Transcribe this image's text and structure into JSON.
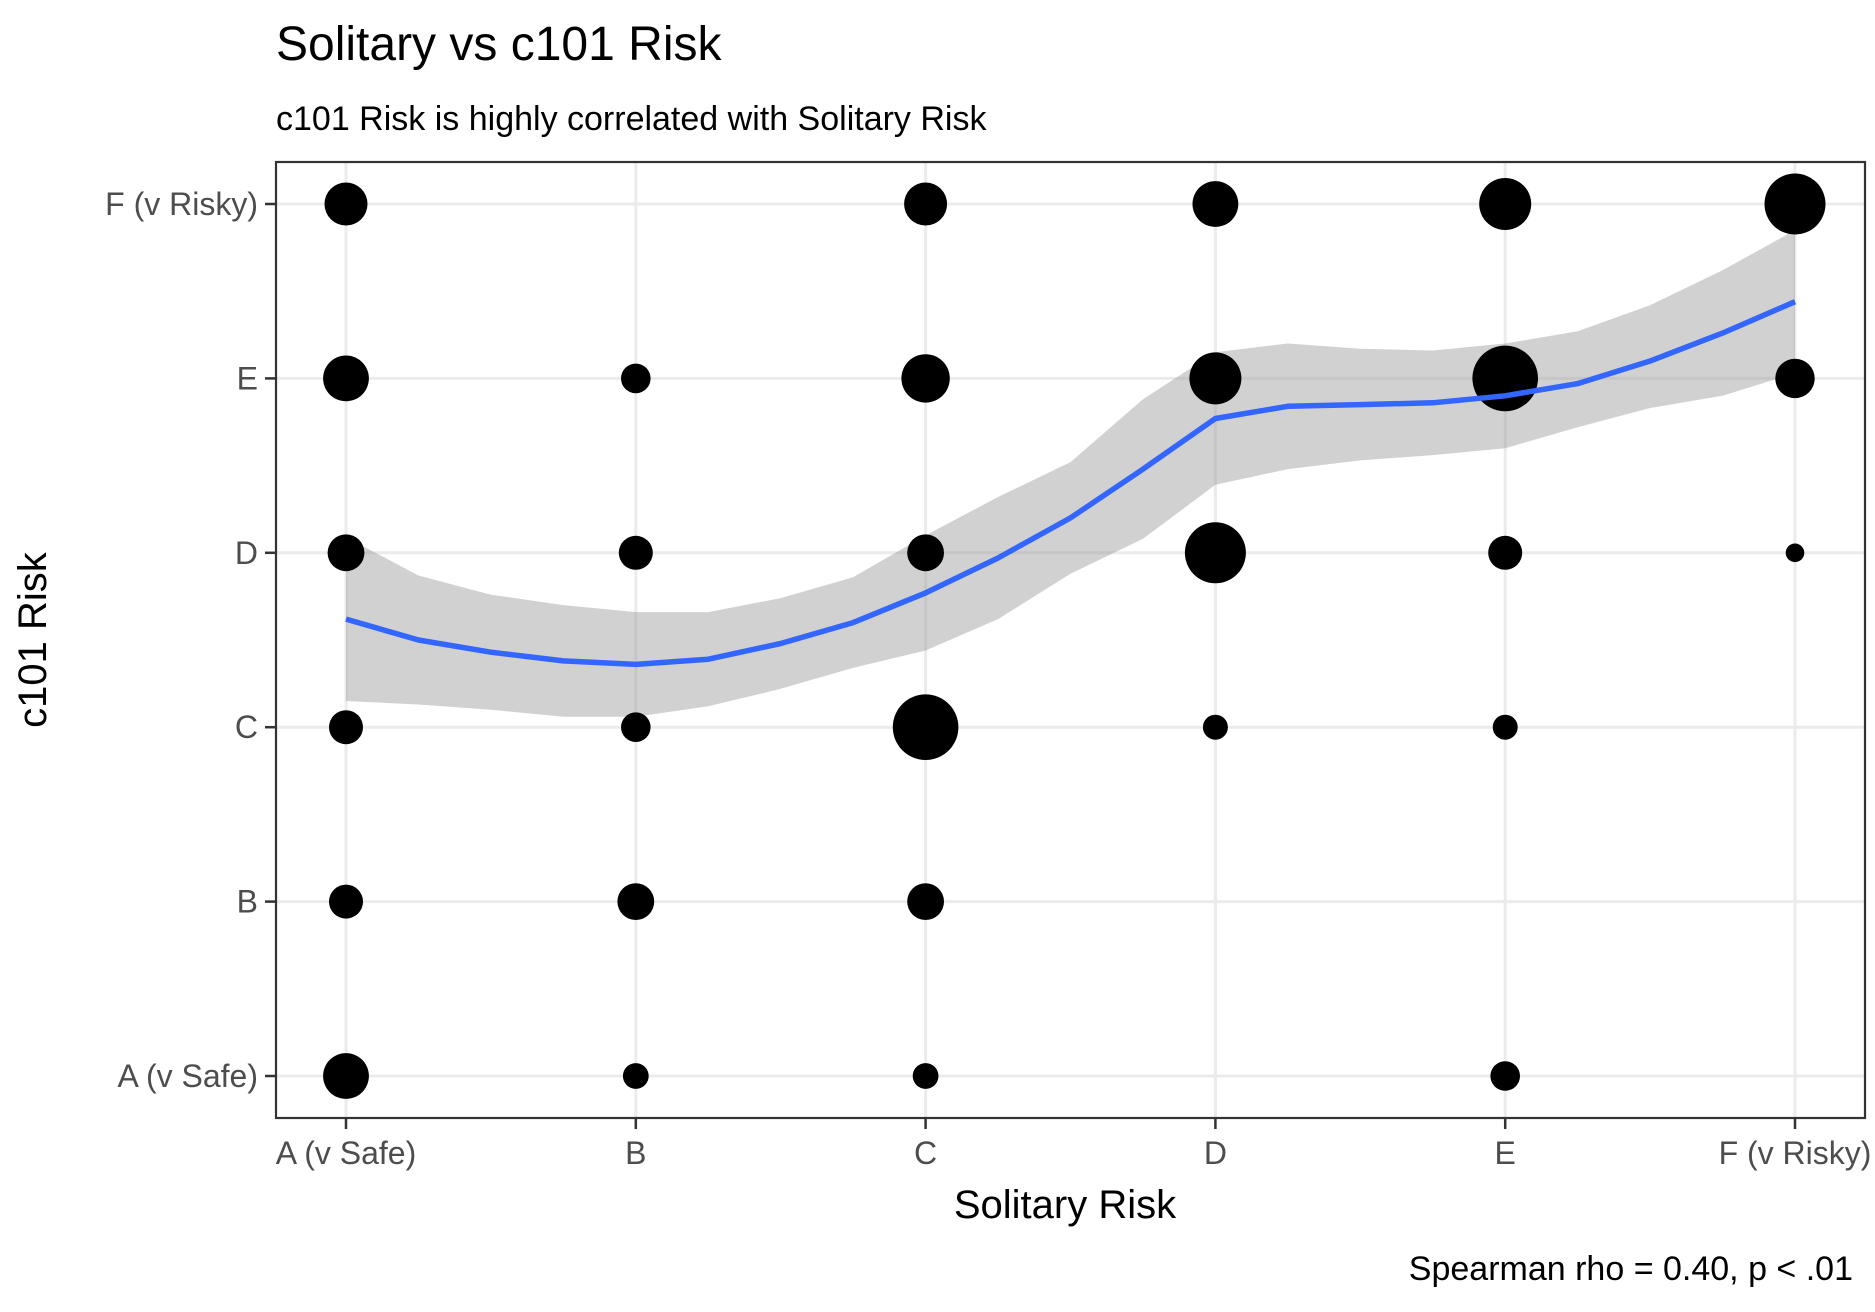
{
  "chart_data": {
    "type": "scatter",
    "title": "Solitary vs c101 Risk",
    "subtitle": "c101 Risk is highly correlated with Solitary Risk",
    "xlabel": "Solitary Risk",
    "ylabel": "c101 Risk",
    "caption": "Spearman rho = 0.40, p < .01",
    "x_categories": [
      "A (v Safe)",
      "B",
      "C",
      "D",
      "E",
      "F (v Risky)"
    ],
    "y_categories": [
      "A (v Safe)",
      "B",
      "C",
      "D",
      "E",
      "F (v Risky)"
    ],
    "grid": true,
    "points": [
      {
        "x": "A (v Safe)",
        "y": "F (v Risky)",
        "size": 3
      },
      {
        "x": "C",
        "y": "F (v Risky)",
        "size": 3
      },
      {
        "x": "D",
        "y": "F (v Risky)",
        "size": 3.3
      },
      {
        "x": "E",
        "y": "F (v Risky)",
        "size": 4
      },
      {
        "x": "F (v Risky)",
        "y": "F (v Risky)",
        "size": 5
      },
      {
        "x": "A (v Safe)",
        "y": "E",
        "size": 3.3
      },
      {
        "x": "B",
        "y": "E",
        "size": 1.5
      },
      {
        "x": "C",
        "y": "E",
        "size": 3.6
      },
      {
        "x": "D",
        "y": "E",
        "size": 4
      },
      {
        "x": "E",
        "y": "E",
        "size": 5.5
      },
      {
        "x": "F (v Risky)",
        "y": "E",
        "size": 2.6
      },
      {
        "x": "A (v Safe)",
        "y": "D",
        "size": 2.3
      },
      {
        "x": "B",
        "y": "D",
        "size": 2
      },
      {
        "x": "C",
        "y": "D",
        "size": 2.3
      },
      {
        "x": "D",
        "y": "D",
        "size": 5
      },
      {
        "x": "E",
        "y": "D",
        "size": 2
      },
      {
        "x": "F (v Risky)",
        "y": "D",
        "size": 0.3
      },
      {
        "x": "A (v Safe)",
        "y": "C",
        "size": 2
      },
      {
        "x": "B",
        "y": "C",
        "size": 1.5
      },
      {
        "x": "C",
        "y": "C",
        "size": 5.5
      },
      {
        "x": "D",
        "y": "C",
        "size": 1
      },
      {
        "x": "E",
        "y": "C",
        "size": 1
      },
      {
        "x": "A (v Safe)",
        "y": "B",
        "size": 2
      },
      {
        "x": "B",
        "y": "B",
        "size": 2.3
      },
      {
        "x": "C",
        "y": "B",
        "size": 2.3
      },
      {
        "x": "A (v Safe)",
        "y": "A (v Safe)",
        "size": 3.3
      },
      {
        "x": "B",
        "y": "A (v Safe)",
        "size": 1.1
      },
      {
        "x": "C",
        "y": "A (v Safe)",
        "size": 1.1
      },
      {
        "x": "E",
        "y": "A (v Safe)",
        "size": 1.5
      }
    ],
    "smooth": {
      "method": "loess",
      "color": "#3366FF",
      "band_color": "#999999",
      "x": [
        1,
        1.25,
        1.5,
        1.75,
        2,
        2.25,
        2.5,
        2.75,
        3,
        3.25,
        3.5,
        3.75,
        4,
        4.25,
        4.5,
        4.75,
        5,
        5.25,
        5.5,
        5.75,
        6
      ],
      "y": [
        3.62,
        3.5,
        3.43,
        3.38,
        3.36,
        3.39,
        3.48,
        3.6,
        3.77,
        3.97,
        4.2,
        4.48,
        4.77,
        4.84,
        4.85,
        4.86,
        4.9,
        4.97,
        5.1,
        5.26,
        5.44
      ],
      "ymin": [
        3.15,
        3.13,
        3.1,
        3.06,
        3.06,
        3.12,
        3.22,
        3.34,
        3.44,
        3.62,
        3.88,
        4.08,
        4.39,
        4.48,
        4.53,
        4.56,
        4.6,
        4.72,
        4.83,
        4.9,
        5.03
      ],
      "ymax": [
        4.09,
        3.87,
        3.76,
        3.7,
        3.66,
        3.66,
        3.74,
        3.86,
        4.1,
        4.32,
        4.52,
        4.88,
        5.15,
        5.2,
        5.17,
        5.16,
        5.2,
        5.27,
        5.42,
        5.62,
        5.85
      ]
    }
  }
}
